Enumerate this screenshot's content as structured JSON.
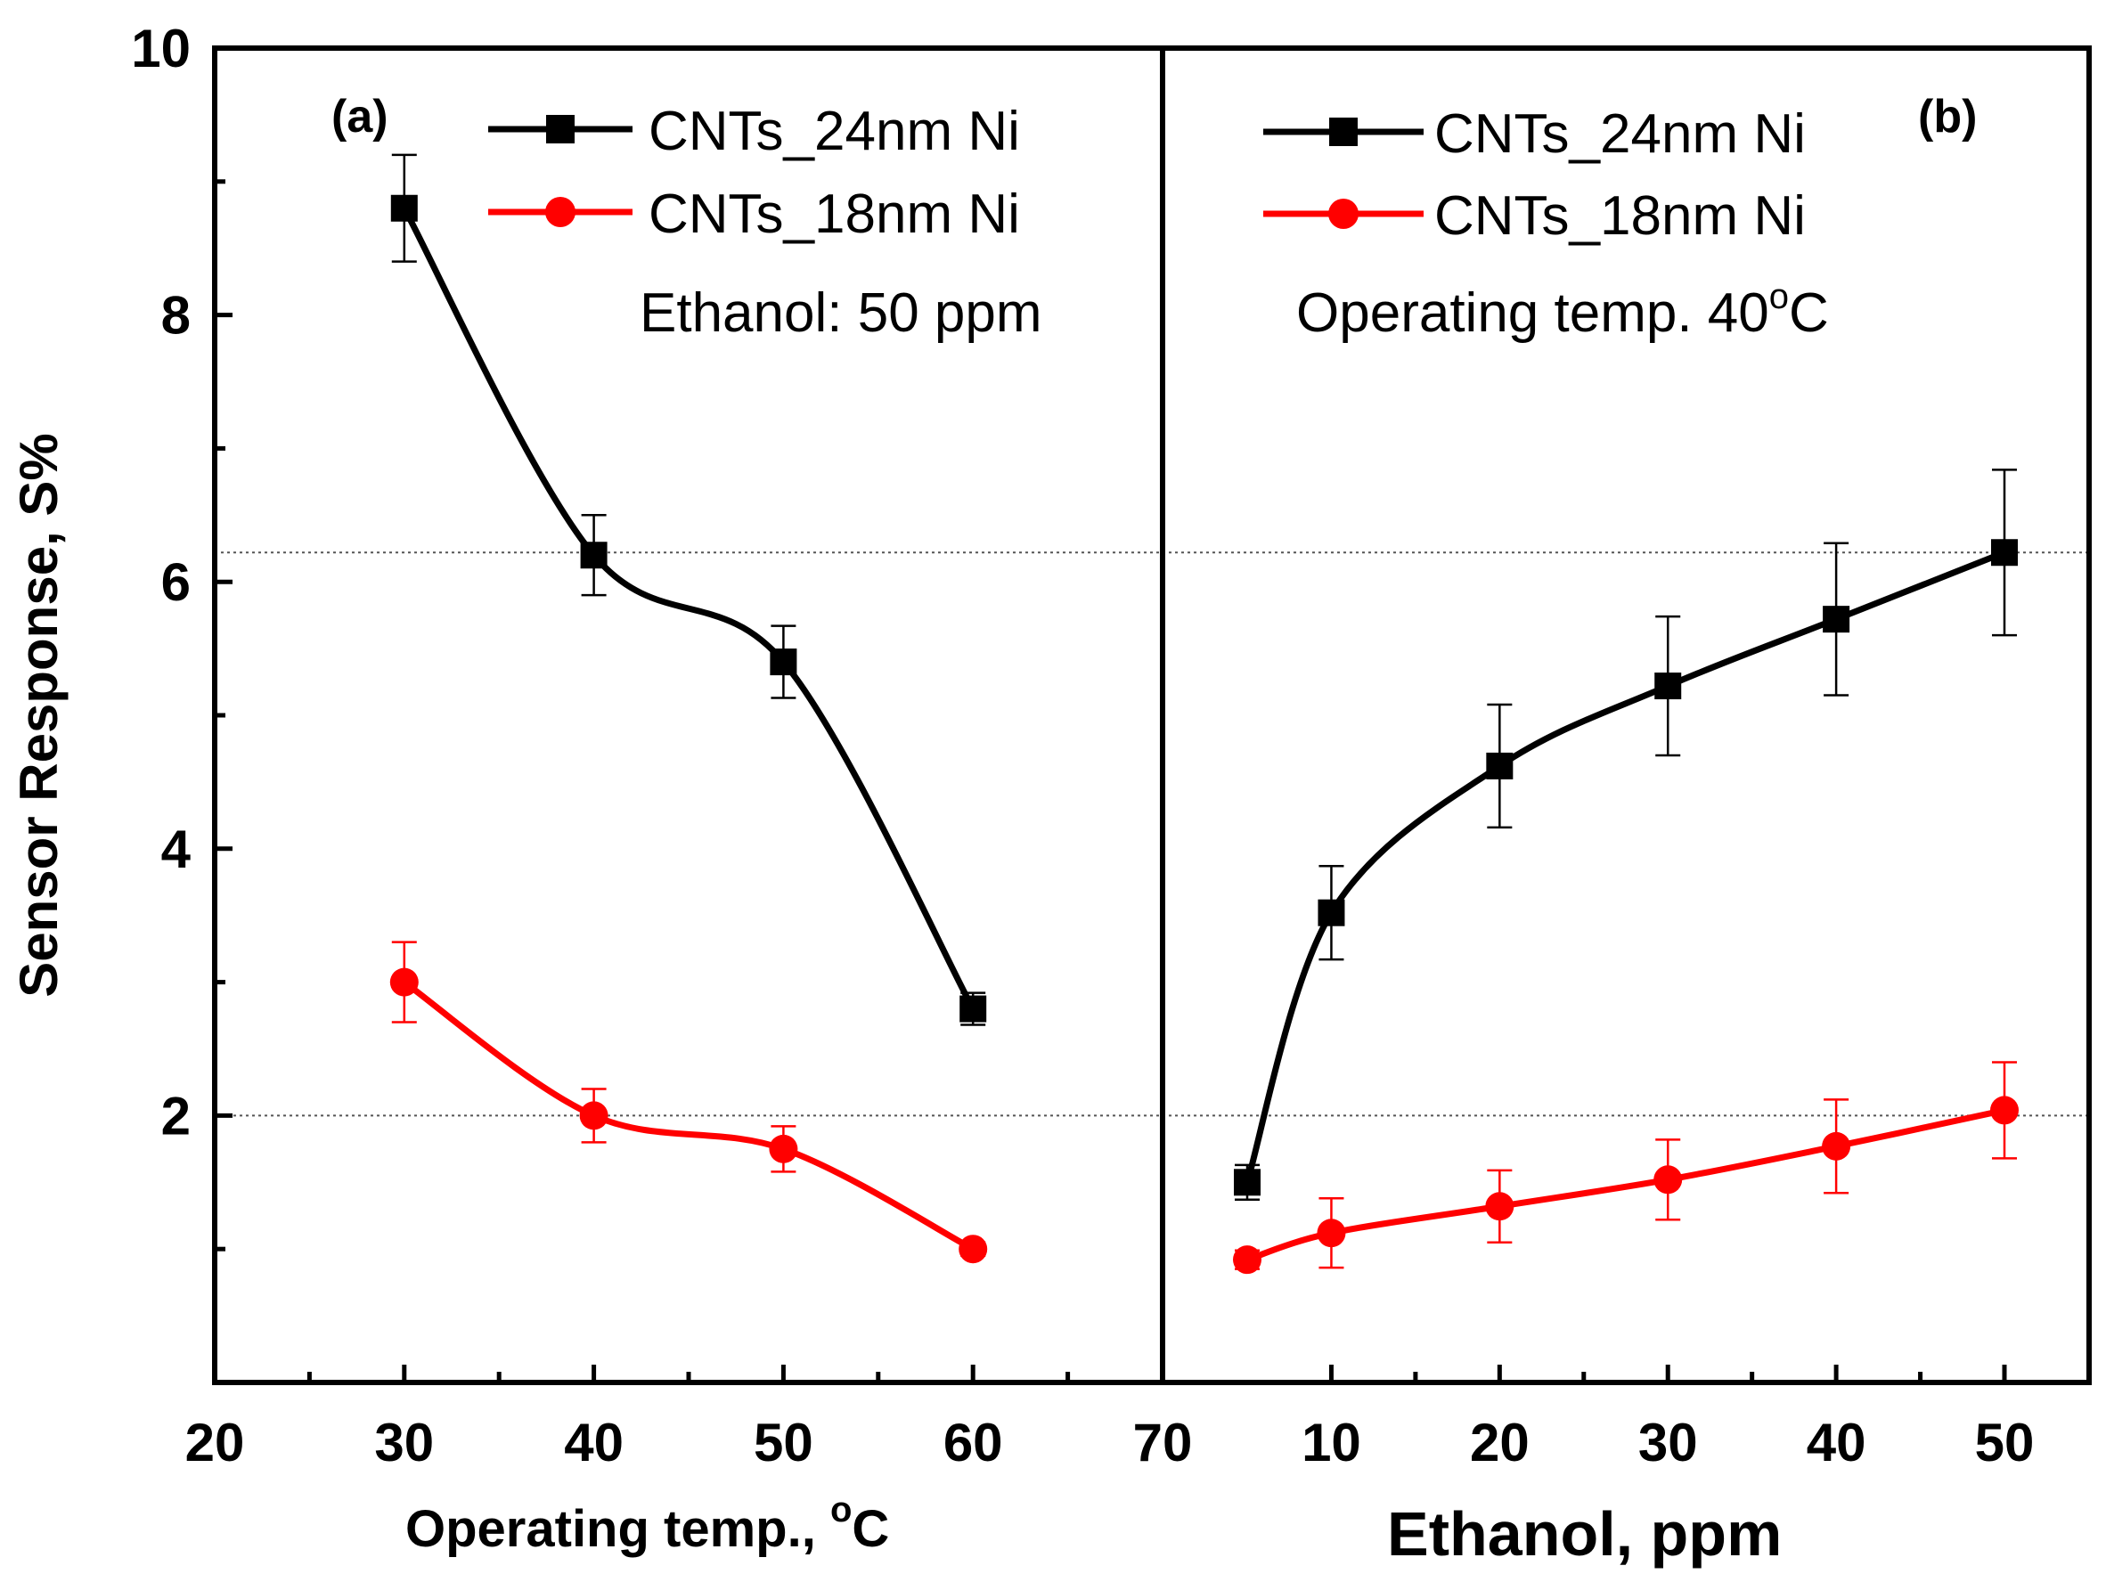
{
  "colors": {
    "black_series": "#000000",
    "red_series": "#ff0000",
    "frame": "#000000",
    "ref_line": "#555555"
  },
  "y_axis": {
    "label": "Sensor Response, S%",
    "ticks": [
      "2",
      "4",
      "6",
      "8",
      "10"
    ]
  },
  "chart_data": [
    {
      "type": "line",
      "panel_label": "(a)",
      "xlabel_main": "Operating temp., ",
      "xlabel_sup": "o",
      "xlabel_tail": "C",
      "ylabel": "Sensor Response, S%",
      "xlim": [
        20,
        70
      ],
      "ylim": [
        0,
        10
      ],
      "x_ticks": [
        "20",
        "30",
        "40",
        "50",
        "60",
        "70"
      ],
      "annotation": "Ethanol: 50 ppm",
      "legend_position": "top-right",
      "x": [
        30,
        40,
        50,
        60
      ],
      "series": [
        {
          "name": "CNTs_24nm Ni",
          "color": "#000000",
          "marker": "square",
          "values": [
            8.8,
            6.2,
            5.4,
            2.8
          ],
          "errors": [
            0.4,
            0.3,
            0.27,
            0.12
          ]
        },
        {
          "name": "CNTs_18nm Ni",
          "color": "#ff0000",
          "marker": "circle",
          "values": [
            3.0,
            2.0,
            1.75,
            1.0
          ],
          "errors": [
            0.3,
            0.2,
            0.17,
            0.05
          ]
        }
      ],
      "reference_lines_y": [
        6.22,
        2.0
      ],
      "grid": false
    },
    {
      "type": "line",
      "panel_label": "(b)",
      "xlabel": "Ethanol, ppm",
      "x_ticks": [
        "10",
        "20",
        "30",
        "40",
        "50"
      ],
      "annotation_main": "Operating temp. 40",
      "annotation_sup": "o",
      "annotation_tail": "C",
      "legend_position": "top-left",
      "x": [
        5,
        10,
        20,
        30,
        40,
        50
      ],
      "series": [
        {
          "name": "CNTs_24nm Ni",
          "color": "#000000",
          "marker": "square",
          "values": [
            1.5,
            3.52,
            4.62,
            5.22,
            5.72,
            6.22
          ],
          "errors": [
            0.13,
            0.35,
            0.46,
            0.52,
            0.57,
            0.62
          ]
        },
        {
          "name": "CNTs_18nm Ni",
          "color": "#ff0000",
          "marker": "circle",
          "values": [
            0.92,
            1.12,
            1.32,
            1.52,
            1.77,
            2.04
          ],
          "errors": [
            0.07,
            0.26,
            0.27,
            0.3,
            0.35,
            0.36
          ]
        }
      ],
      "grid": false
    }
  ]
}
